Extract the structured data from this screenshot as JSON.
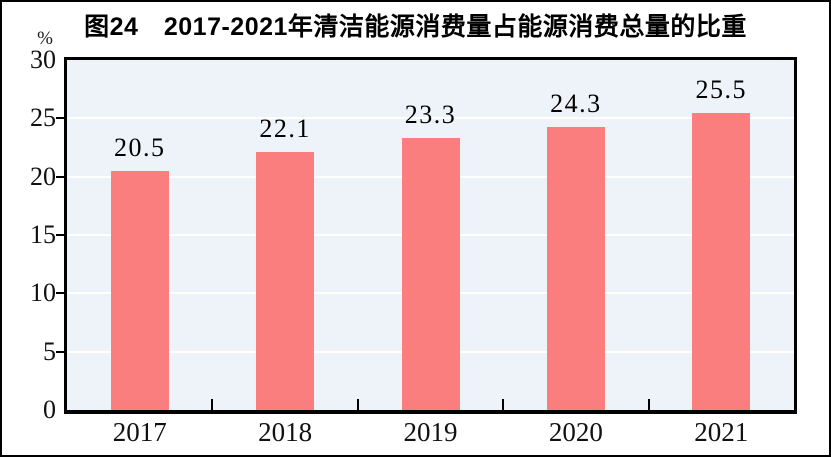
{
  "chart_data": {
    "type": "bar",
    "title": "图24　2017-2021年清洁能源消费量占能源消费总量的比重",
    "unit_label": "%",
    "categories": [
      "2017",
      "2018",
      "2019",
      "2020",
      "2021"
    ],
    "values": [
      20.5,
      22.1,
      23.3,
      24.3,
      25.5
    ],
    "data_labels": [
      "20.5",
      "22.1",
      "23.3",
      "24.3",
      "25.5"
    ],
    "xlabel": "",
    "ylabel": "%",
    "ylim": [
      0,
      30
    ],
    "y_ticks": [
      0,
      5,
      10,
      15,
      20,
      25,
      30
    ],
    "grid": true,
    "legend": "none",
    "colors": {
      "bar": "#FB7E7E",
      "plot_background": "#EDF3F8",
      "gridline": "#FFFFFF",
      "axis": "#000000",
      "text": "#000000",
      "frame_border": "#000000"
    }
  }
}
